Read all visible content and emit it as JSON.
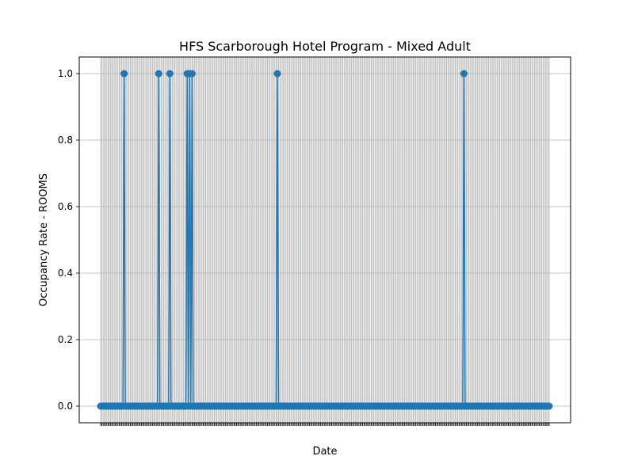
{
  "chart_data": {
    "type": "line",
    "title": "HFS Scarborough Hotel Program - Mixed Adult",
    "xlabel": "Date",
    "ylabel": "Occupancy Rate - ROOMS",
    "ylim": [
      -0.05,
      1.05
    ],
    "y_ticks": [
      "0.0",
      "0.2",
      "0.4",
      "0.6",
      "0.8",
      "1.0"
    ],
    "x_tick_labels_legible": false,
    "n_points": 364,
    "spike_indices": [
      19,
      47,
      56,
      70,
      72,
      74,
      143,
      294
    ],
    "grid": true,
    "marker": "circle",
    "color": "#1f77b4",
    "series": [
      {
        "name": "",
        "values": "364 daily values, all 0 except value 1 at spike_indices"
      }
    ]
  }
}
